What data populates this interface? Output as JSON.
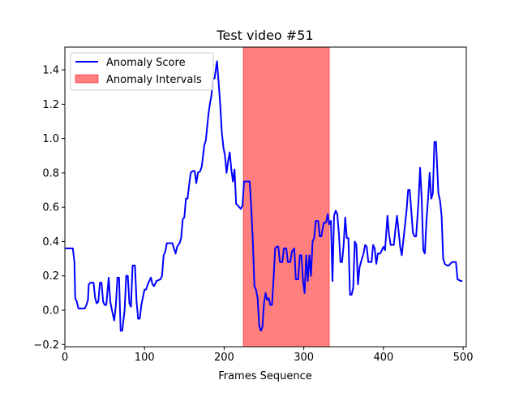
{
  "chart_data": {
    "type": "line",
    "title": "Test video #51",
    "xlabel": "Frames Sequence",
    "xlim": [
      0,
      504
    ],
    "xticks": [
      0,
      100,
      200,
      300,
      400,
      500
    ],
    "ylim": [
      -0.213,
      1.533
    ],
    "yticks": [
      {
        "value": -0.2,
        "label": "−0.2"
      },
      {
        "value": 0,
        "label": "0.0"
      },
      0.2,
      0.4,
      0.6,
      0.8,
      {
        "value": 1,
        "label": "1.0"
      },
      1.2,
      1.4
    ],
    "legend": "upper left",
    "series": [
      {
        "name": "Anomaly Score",
        "color": "#0000ff",
        "x": [
          0,
          10,
          12,
          13,
          15,
          17,
          25,
          27,
          29,
          30,
          32,
          36,
          38,
          40,
          42,
          44,
          46,
          48,
          50,
          52,
          55,
          57,
          60,
          62,
          64,
          66,
          68,
          70,
          72,
          75,
          77,
          79,
          81,
          83,
          85,
          88,
          90,
          92,
          94,
          96,
          100,
          102,
          104,
          108,
          110,
          112,
          115,
          120,
          122,
          124,
          126,
          128,
          135,
          137,
          139,
          141,
          144,
          146,
          148,
          150,
          152,
          154,
          156,
          158,
          160,
          163,
          165,
          167,
          170,
          172,
          175,
          177,
          180,
          182,
          184,
          186,
          188,
          190,
          191,
          193,
          195,
          197,
          199,
          201,
          203,
          205,
          207,
          209,
          211,
          213,
          215,
          217,
          219,
          221,
          223,
          225,
          232,
          234,
          236,
          238,
          240,
          242,
          244,
          246,
          248,
          250,
          252,
          254,
          256,
          258,
          260,
          262,
          264,
          266,
          268,
          270,
          273,
          275,
          278,
          280,
          283,
          285,
          288,
          290,
          293,
          295,
          297,
          299,
          301,
          303,
          305,
          307,
          309,
          311,
          313,
          315,
          318,
          320,
          322,
          325,
          328,
          330,
          332,
          334,
          336,
          338,
          340,
          342,
          344,
          346,
          348,
          350,
          352,
          354,
          356,
          358,
          360,
          362,
          364,
          366,
          368,
          370,
          373,
          375,
          377,
          379,
          381,
          385,
          387,
          389,
          391,
          393,
          396,
          398,
          400,
          402,
          405,
          407,
          409,
          413,
          415,
          417,
          419,
          421,
          423,
          429,
          431,
          433,
          437,
          439,
          441,
          444,
          446,
          448,
          450,
          452,
          454,
          456,
          458,
          460,
          462,
          464,
          466,
          469,
          471,
          473,
          475,
          477,
          480,
          482,
          486,
          491,
          493,
          497,
          499
        ],
        "values": [
          0.36,
          0.36,
          0.28,
          0.07,
          0.05,
          0.01,
          0.01,
          0.03,
          0.06,
          0.15,
          0.16,
          0.16,
          0.07,
          0.04,
          0.05,
          0.16,
          0.16,
          0.05,
          0.03,
          0.03,
          0.19,
          0.05,
          -0.02,
          -0.06,
          0.03,
          0.19,
          0.19,
          -0.12,
          -0.12,
          0.0,
          0.2,
          0.2,
          0.04,
          0.02,
          0.26,
          0.26,
          0.05,
          -0.05,
          -0.05,
          0.03,
          0.12,
          0.12,
          0.15,
          0.19,
          0.15,
          0.14,
          0.17,
          0.18,
          0.2,
          0.32,
          0.34,
          0.39,
          0.39,
          0.36,
          0.33,
          0.37,
          0.39,
          0.42,
          0.53,
          0.54,
          0.65,
          0.65,
          0.73,
          0.8,
          0.81,
          0.81,
          0.74,
          0.8,
          0.81,
          0.84,
          0.96,
          0.99,
          1.13,
          1.2,
          1.25,
          1.35,
          1.35,
          1.42,
          1.45,
          1.33,
          1.2,
          1.04,
          0.95,
          0.9,
          0.8,
          0.87,
          0.92,
          0.82,
          0.75,
          0.82,
          0.62,
          0.61,
          0.6,
          0.59,
          0.61,
          0.75,
          0.75,
          0.6,
          0.4,
          0.14,
          0.12,
          0.07,
          -0.09,
          -0.12,
          -0.1,
          0.04,
          0.1,
          0.06,
          0.07,
          0.03,
          0.03,
          0.18,
          0.36,
          0.37,
          0.37,
          0.28,
          0.28,
          0.36,
          0.36,
          0.28,
          0.28,
          0.34,
          0.36,
          0.18,
          0.18,
          0.32,
          0.32,
          0.17,
          0.1,
          0.32,
          0.17,
          0.32,
          0.2,
          0.4,
          0.42,
          0.52,
          0.52,
          0.43,
          0.43,
          0.51,
          0.51,
          0.56,
          0.5,
          0.52,
          0.17,
          0.55,
          0.58,
          0.56,
          0.45,
          0.28,
          0.28,
          0.38,
          0.54,
          0.42,
          0.42,
          0.09,
          0.09,
          0.13,
          0.4,
          0.38,
          0.15,
          0.25,
          0.3,
          0.33,
          0.38,
          0.37,
          0.28,
          0.28,
          0.38,
          0.36,
          0.27,
          0.33,
          0.33,
          0.35,
          0.37,
          0.35,
          0.55,
          0.44,
          0.38,
          0.38,
          0.47,
          0.55,
          0.46,
          0.37,
          0.32,
          0.58,
          0.7,
          0.7,
          0.45,
          0.43,
          0.43,
          0.63,
          0.83,
          0.65,
          0.35,
          0.33,
          0.52,
          0.65,
          0.8,
          0.65,
          0.68,
          0.98,
          0.98,
          0.68,
          0.64,
          0.55,
          0.3,
          0.27,
          0.26,
          0.26,
          0.28,
          0.28,
          0.18,
          0.17,
          0.17
        ]
      }
    ],
    "anomaly_intervals": {
      "name": "Anomaly Intervals",
      "color": "#ff0000",
      "ranges": [
        [
          224,
          332
        ]
      ]
    }
  }
}
